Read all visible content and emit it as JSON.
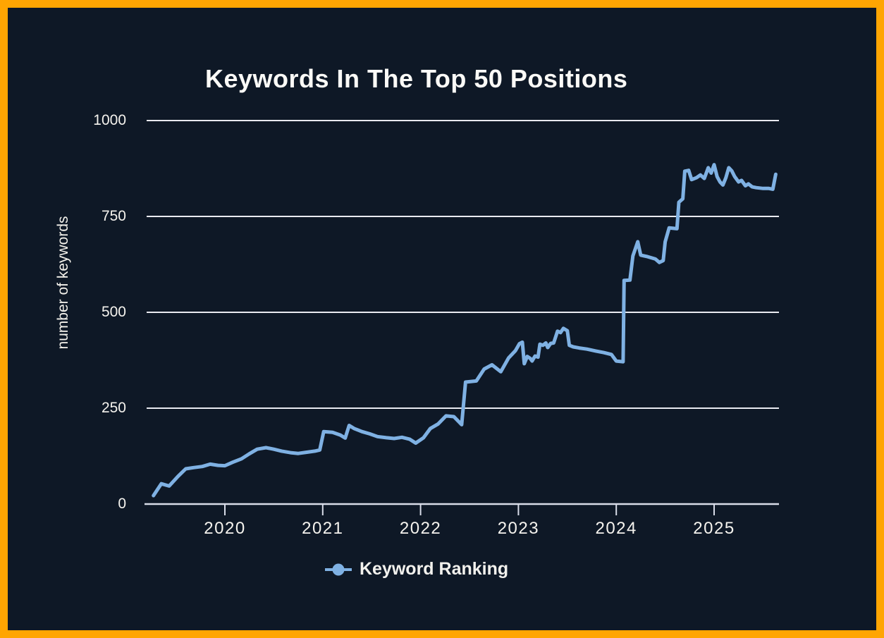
{
  "window": {
    "background_color": "#0E1826",
    "border_color": "#FFA502"
  },
  "chart_data": {
    "type": "line",
    "title": "Keywords In The Top 50 Positions",
    "xlabel": "",
    "ylabel": "number of keywords",
    "ylim": [
      0,
      1000
    ],
    "yticks": [
      "0",
      "250",
      "500",
      "750",
      "1000"
    ],
    "ytick_values": [
      0,
      250,
      500,
      750,
      1000
    ],
    "xticks": [
      "2020",
      "2021",
      "2022",
      "2023",
      "2024",
      "2025"
    ],
    "xtick_values": [
      2020,
      2021,
      2022,
      2023,
      2024,
      2025
    ],
    "grid": "horizontal gridlines only",
    "legend_position": "bottom-center",
    "colors": {
      "line": "#7FB1E3",
      "gridline": "#E9EAF0",
      "axis_line": "#D8DCE8",
      "text": "#F5F3EE"
    },
    "series": [
      {
        "name": "Keyword Ranking",
        "color": "#7FB1E3",
        "marker": "circle",
        "x_unit": "decimal-year",
        "points": [
          [
            2019.27,
            22
          ],
          [
            2019.35,
            53
          ],
          [
            2019.43,
            47
          ],
          [
            2019.52,
            72
          ],
          [
            2019.6,
            92
          ],
          [
            2019.68,
            95
          ],
          [
            2019.77,
            98
          ],
          [
            2019.85,
            104
          ],
          [
            2019.93,
            101
          ],
          [
            2020.0,
            100
          ],
          [
            2020.08,
            109
          ],
          [
            2020.17,
            118
          ],
          [
            2020.25,
            131
          ],
          [
            2020.33,
            143
          ],
          [
            2020.42,
            147
          ],
          [
            2020.5,
            143
          ],
          [
            2020.58,
            138
          ],
          [
            2020.67,
            134
          ],
          [
            2020.75,
            132
          ],
          [
            2020.83,
            135
          ],
          [
            2020.92,
            138
          ],
          [
            2020.97,
            141
          ],
          [
            2021.01,
            189
          ],
          [
            2021.1,
            187
          ],
          [
            2021.18,
            180
          ],
          [
            2021.23,
            172
          ],
          [
            2021.27,
            205
          ],
          [
            2021.32,
            197
          ],
          [
            2021.4,
            189
          ],
          [
            2021.48,
            183
          ],
          [
            2021.56,
            176
          ],
          [
            2021.65,
            173
          ],
          [
            2021.73,
            171
          ],
          [
            2021.81,
            174
          ],
          [
            2021.89,
            169
          ],
          [
            2021.95,
            159
          ],
          [
            2022.03,
            173
          ],
          [
            2022.1,
            197
          ],
          [
            2022.18,
            209
          ],
          [
            2022.26,
            230
          ],
          [
            2022.34,
            228
          ],
          [
            2022.42,
            207
          ],
          [
            2022.46,
            318
          ],
          [
            2022.57,
            321
          ],
          [
            2022.65,
            352
          ],
          [
            2022.73,
            363
          ],
          [
            2022.82,
            345
          ],
          [
            2022.9,
            381
          ],
          [
            2022.97,
            400
          ],
          [
            2023.01,
            418
          ],
          [
            2023.04,
            422
          ],
          [
            2023.06,
            366
          ],
          [
            2023.09,
            385
          ],
          [
            2023.12,
            380
          ],
          [
            2023.14,
            373
          ],
          [
            2023.17,
            386
          ],
          [
            2023.2,
            383
          ],
          [
            2023.22,
            417
          ],
          [
            2023.25,
            414
          ],
          [
            2023.28,
            420
          ],
          [
            2023.3,
            408
          ],
          [
            2023.33,
            419
          ],
          [
            2023.36,
            420
          ],
          [
            2023.4,
            451
          ],
          [
            2023.43,
            447
          ],
          [
            2023.46,
            458
          ],
          [
            2023.5,
            452
          ],
          [
            2023.52,
            414
          ],
          [
            2023.56,
            410
          ],
          [
            2023.62,
            407
          ],
          [
            2023.7,
            404
          ],
          [
            2023.79,
            399
          ],
          [
            2023.87,
            395
          ],
          [
            2023.95,
            390
          ],
          [
            2024.0,
            373
          ],
          [
            2024.07,
            371
          ],
          [
            2024.08,
            583
          ],
          [
            2024.14,
            584
          ],
          [
            2024.17,
            647
          ],
          [
            2024.22,
            684
          ],
          [
            2024.25,
            649
          ],
          [
            2024.32,
            645
          ],
          [
            2024.4,
            639
          ],
          [
            2024.44,
            630
          ],
          [
            2024.48,
            635
          ],
          [
            2024.5,
            684
          ],
          [
            2024.54,
            720
          ],
          [
            2024.62,
            718
          ],
          [
            2024.64,
            787
          ],
          [
            2024.68,
            796
          ],
          [
            2024.7,
            868
          ],
          [
            2024.74,
            870
          ],
          [
            2024.77,
            846
          ],
          [
            2024.82,
            851
          ],
          [
            2024.86,
            858
          ],
          [
            2024.9,
            849
          ],
          [
            2024.94,
            877
          ],
          [
            2024.97,
            863
          ],
          [
            2025.0,
            885
          ],
          [
            2025.03,
            854
          ],
          [
            2025.06,
            840
          ],
          [
            2025.09,
            832
          ],
          [
            2025.12,
            851
          ],
          [
            2025.15,
            877
          ],
          [
            2025.18,
            869
          ],
          [
            2025.21,
            854
          ],
          [
            2025.25,
            840
          ],
          [
            2025.28,
            844
          ],
          [
            2025.32,
            830
          ],
          [
            2025.35,
            835
          ],
          [
            2025.39,
            827
          ],
          [
            2025.43,
            825
          ],
          [
            2025.5,
            823
          ],
          [
            2025.56,
            823
          ],
          [
            2025.6,
            821
          ],
          [
            2025.63,
            860
          ]
        ]
      }
    ]
  },
  "legend": {
    "label": "Keyword Ranking"
  }
}
